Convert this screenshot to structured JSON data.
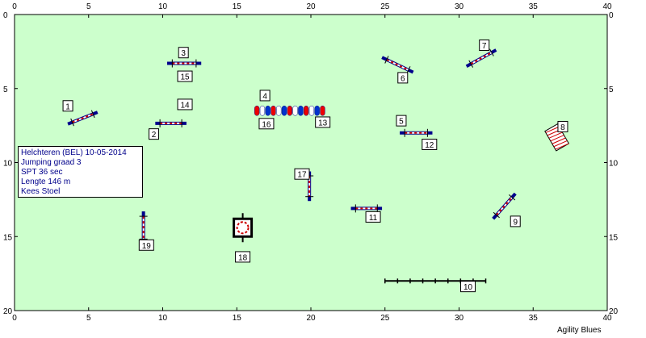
{
  "course": {
    "x_range": [
      0,
      40
    ],
    "y_range": [
      0,
      20
    ],
    "x_ticks": [
      "0",
      "5",
      "10",
      "15",
      "20",
      "25",
      "30",
      "35",
      "40"
    ],
    "y_ticks": [
      "0",
      "5",
      "10",
      "15",
      "20"
    ],
    "field_color": "#ccffcc",
    "line_color": "#00008b"
  },
  "info": {
    "line1": "Helchteren (BEL) 10-05-2014",
    "line2": "Jumping graad 3",
    "line3": "SPT 36 sec",
    "line4": "Lengte 146 m",
    "line5": "Kees Stoel"
  },
  "credit": "Agility Blues",
  "labels": [
    {
      "text": "1",
      "x": 3.6,
      "y": 6.2
    },
    {
      "text": "2",
      "x": 9.4,
      "y": 8.1
    },
    {
      "text": "3",
      "x": 11.4,
      "y": 2.6
    },
    {
      "text": "4",
      "x": 16.9,
      "y": 5.5
    },
    {
      "text": "5",
      "x": 26.1,
      "y": 7.2
    },
    {
      "text": "6",
      "x": 26.2,
      "y": 4.3
    },
    {
      "text": "7",
      "x": 31.7,
      "y": 2.1
    },
    {
      "text": "8",
      "x": 37.0,
      "y": 7.6
    },
    {
      "text": "9",
      "x": 33.8,
      "y": 14.0
    },
    {
      "text": "10",
      "x": 30.6,
      "y": 18.4
    },
    {
      "text": "11",
      "x": 24.2,
      "y": 13.7
    },
    {
      "text": "12",
      "x": 28.0,
      "y": 8.8
    },
    {
      "text": "13",
      "x": 20.8,
      "y": 7.3
    },
    {
      "text": "14",
      "x": 11.5,
      "y": 6.1
    },
    {
      "text": "15",
      "x": 11.5,
      "y": 4.2
    },
    {
      "text": "16",
      "x": 17.0,
      "y": 7.4
    },
    {
      "text": "17",
      "x": 19.4,
      "y": 10.8
    },
    {
      "text": "18",
      "x": 15.4,
      "y": 16.4
    },
    {
      "text": "19",
      "x": 8.9,
      "y": 15.6
    }
  ],
  "jumps": [
    {
      "name": "1",
      "x1": 3.6,
      "y1": 7.4,
      "x2": 5.6,
      "y2": 6.6
    },
    {
      "name": "2",
      "x1": 9.5,
      "y1": 7.35,
      "x2": 11.6,
      "y2": 7.35
    },
    {
      "name": "3",
      "x1": 10.3,
      "y1": 3.3,
      "x2": 12.6,
      "y2": 3.3
    },
    {
      "name": "5",
      "x1": 26.0,
      "y1": 8.0,
      "x2": 28.2,
      "y2": 8.0
    },
    {
      "name": "6",
      "x1": 24.8,
      "y1": 2.9,
      "x2": 26.9,
      "y2": 3.9
    },
    {
      "name": "7",
      "x1": 30.5,
      "y1": 3.5,
      "x2": 32.5,
      "y2": 2.4
    },
    {
      "name": "9",
      "x1": 32.3,
      "y1": 13.8,
      "x2": 33.8,
      "y2": 12.1
    },
    {
      "name": "11",
      "x1": 22.7,
      "y1": 13.1,
      "x2": 24.8,
      "y2": 13.1
    },
    {
      "name": "17",
      "x1": 19.9,
      "y1": 10.6,
      "x2": 19.9,
      "y2": 12.6
    },
    {
      "name": "19",
      "x1": 8.7,
      "y1": 13.3,
      "x2": 8.7,
      "y2": 15.5
    }
  ],
  "tunnel": {
    "name": "4",
    "x1": 16.2,
    "x2": 21.0,
    "y": 6.5
  },
  "long_jump": {
    "name": "10",
    "x1": 25.0,
    "x2": 31.8,
    "y": 18.0
  },
  "weave": {
    "name": "8",
    "x": 36.6,
    "y": 8.3
  },
  "tire": {
    "name": "18",
    "x": 15.4,
    "y": 14.4
  }
}
